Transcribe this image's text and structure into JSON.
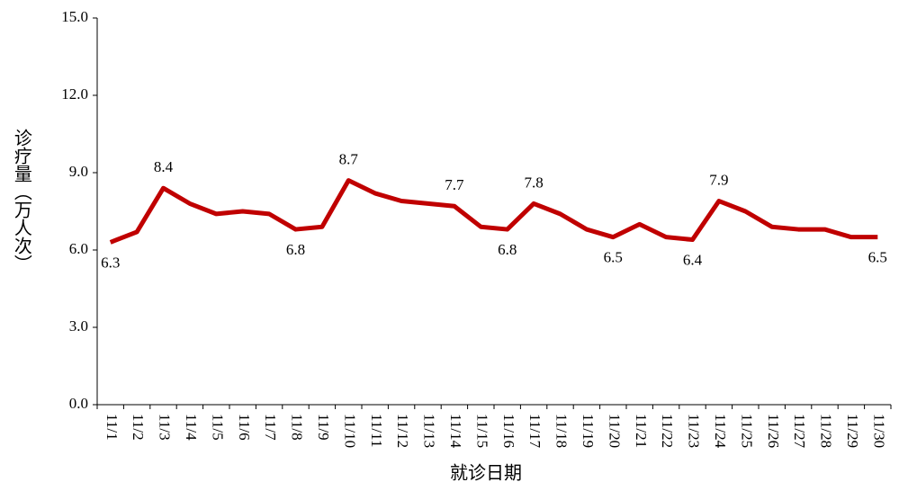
{
  "chart_data": {
    "type": "line",
    "y_label": "诊疗量（万人次）",
    "x_label": "就诊日期",
    "categories": [
      "11/1",
      "11/2",
      "11/3",
      "11/4",
      "11/5",
      "11/6",
      "11/7",
      "11/8",
      "11/9",
      "11/10",
      "11/11",
      "11/12",
      "11/13",
      "11/14",
      "11/15",
      "11/16",
      "11/17",
      "11/18",
      "11/19",
      "11/20",
      "11/21",
      "11/22",
      "11/23",
      "11/24",
      "11/25",
      "11/26",
      "11/27",
      "11/28",
      "11/29",
      "11/30"
    ],
    "series": [
      {
        "color": "#c00000",
        "values": [
          6.3,
          6.7,
          8.4,
          7.8,
          7.4,
          7.5,
          7.4,
          6.8,
          6.9,
          8.7,
          8.2,
          7.9,
          7.8,
          7.7,
          6.9,
          6.8,
          7.8,
          7.4,
          6.8,
          6.5,
          7.0,
          6.5,
          6.4,
          7.9,
          7.5,
          6.9,
          6.8,
          6.8,
          6.5,
          6.5
        ],
        "value_labels": [
          "6.3",
          null,
          "8.4",
          null,
          null,
          null,
          null,
          "6.8",
          null,
          "8.7",
          null,
          null,
          null,
          "7.7",
          null,
          "6.8",
          "7.8",
          null,
          null,
          "6.5",
          null,
          null,
          "6.4",
          "7.9",
          null,
          null,
          null,
          null,
          null,
          "6.5"
        ]
      }
    ],
    "ylim": [
      0,
      15
    ],
    "yticks": [
      {
        "value": 0,
        "label": "0.0"
      },
      {
        "value": 3,
        "label": "3.0"
      },
      {
        "value": 6,
        "label": "6.0"
      },
      {
        "value": 9,
        "label": "9.0"
      },
      {
        "value": 12,
        "label": "12.0"
      },
      {
        "value": 15,
        "label": "15.0"
      }
    ],
    "grid": false
  }
}
